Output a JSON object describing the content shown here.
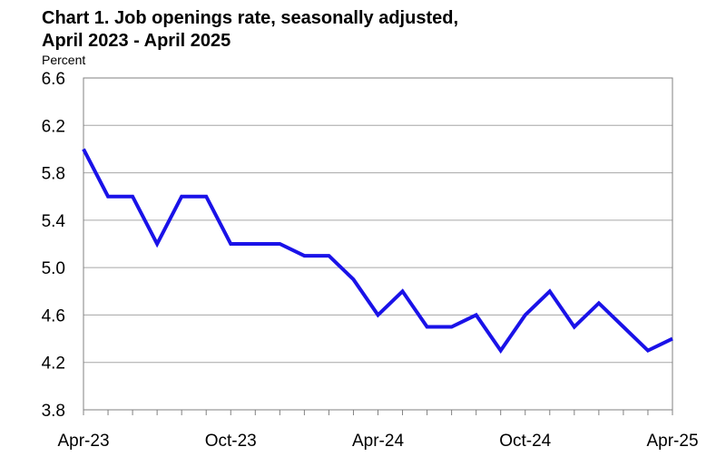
{
  "chart_data": {
    "type": "line",
    "title_line1": "Chart 1. Job openings rate, seasonally adjusted,",
    "title_line2": "April 2023 - April 2025",
    "ylabel": "Percent",
    "xlabel": "",
    "ylim": [
      3.8,
      6.6
    ],
    "yticks": [
      "3.8",
      "4.2",
      "4.6",
      "5.0",
      "5.4",
      "5.8",
      "6.2",
      "6.6"
    ],
    "xtick_labels": [
      "Apr-23",
      "Oct-23",
      "Apr-24",
      "Oct-24",
      "Apr-25"
    ],
    "x": [
      "Apr-23",
      "May-23",
      "Jun-23",
      "Jul-23",
      "Aug-23",
      "Sep-23",
      "Oct-23",
      "Nov-23",
      "Dec-23",
      "Jan-24",
      "Feb-24",
      "Mar-24",
      "Apr-24",
      "May-24",
      "Jun-24",
      "Jul-24",
      "Aug-24",
      "Sep-24",
      "Oct-24",
      "Nov-24",
      "Dec-24",
      "Jan-25",
      "Feb-25",
      "Mar-25",
      "Apr-25"
    ],
    "series": [
      {
        "values": [
          6.0,
          5.6,
          5.6,
          5.2,
          5.6,
          5.6,
          5.2,
          5.2,
          5.2,
          5.1,
          5.1,
          4.9,
          4.6,
          4.8,
          4.5,
          4.5,
          4.6,
          4.3,
          4.6,
          4.8,
          4.5,
          4.7,
          4.5,
          4.3,
          4.4
        ]
      }
    ],
    "grid": true,
    "line_color": "#1a12e8",
    "grid_color": "#a6a6a6"
  }
}
